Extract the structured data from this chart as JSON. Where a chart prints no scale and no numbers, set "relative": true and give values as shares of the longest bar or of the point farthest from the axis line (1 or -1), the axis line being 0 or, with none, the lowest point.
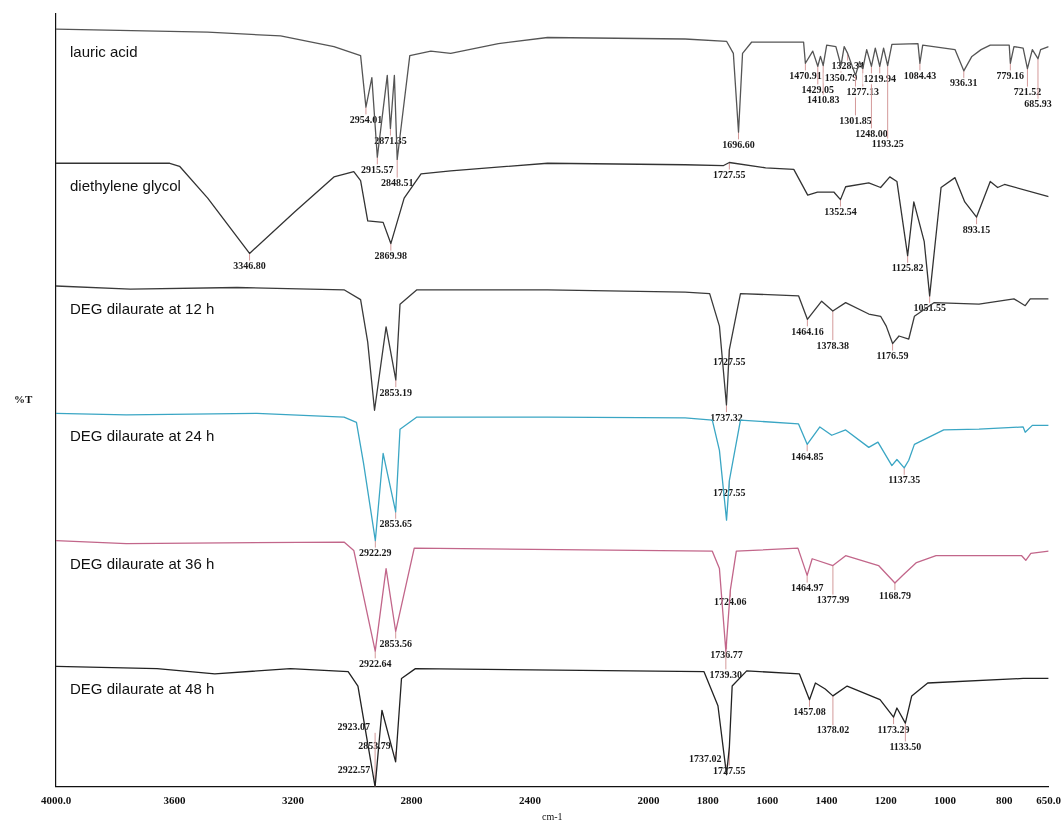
{
  "chart_data": {
    "type": "line",
    "relative": true,
    "xlabel": "cm-1",
    "ylabel": "%T",
    "xlim": [
      4000,
      650
    ],
    "xticks": [
      {
        "value": 4000,
        "label": "4000.0"
      },
      3600,
      3200,
      2800,
      2400,
      2000,
      1800,
      1600,
      1400,
      1200,
      1000,
      800,
      {
        "value": 650,
        "label": "650.0"
      }
    ],
    "series": [
      {
        "name": "lauric acid",
        "color": "#555555",
        "x": [
          4000,
          3488,
          3242,
          3062,
          2972,
          2954.01,
          2934,
          2915.57,
          2882,
          2871.35,
          2858,
          2848.51,
          2806,
          2735,
          2668,
          2507,
          2341,
          1877,
          1737,
          1714,
          1696.6,
          1683,
          1652,
          1477,
          1470.91,
          1446,
          1429.05,
          1420,
          1410.83,
          1399,
          1368,
          1350.79,
          1340,
          1328.34,
          1301.85,
          1288,
          1277.13,
          1264,
          1248,
          1235,
          1219.94,
          1207,
          1193.25,
          1179,
          1091,
          1084.43,
          1075,
          966,
          936.31,
          909,
          878,
          847,
          783,
          779.16,
          767,
          736,
          721.52,
          705,
          685.93,
          677,
          650
        ],
        "values": [
          1.0,
          0.996,
          0.991,
          0.977,
          0.965,
          0.897,
          0.936,
          0.831,
          0.939,
          0.869,
          0.939,
          0.828,
          0.965,
          0.971,
          0.968,
          0.981,
          0.989,
          0.987,
          0.984,
          0.968,
          0.864,
          0.968,
          0.983,
          0.983,
          0.955,
          0.971,
          0.951,
          0.964,
          0.952,
          0.979,
          0.977,
          0.952,
          0.977,
          0.968,
          0.939,
          0.957,
          0.948,
          0.973,
          0.951,
          0.975,
          0.951,
          0.975,
          0.952,
          0.98,
          0.981,
          0.955,
          0.979,
          0.973,
          0.945,
          0.964,
          0.973,
          0.979,
          0.979,
          0.955,
          0.977,
          0.975,
          0.948,
          0.973,
          0.961,
          0.973,
          0.977
        ]
      },
      {
        "name": "diethylene glycol",
        "color": "#333333",
        "x": [
          4000,
          3616,
          3583,
          3488,
          3346.8,
          3194,
          3062,
          2995,
          2972,
          2948,
          2896,
          2869.98,
          2825,
          2768,
          2668,
          2341,
          1877,
          1747,
          1727.55,
          1605,
          1510,
          1463,
          1430,
          1375,
          1352.54,
          1335,
          1257,
          1217,
          1186,
          1162,
          1125.82,
          1105,
          1070,
          1051.55,
          1013,
          966,
          933,
          893.15,
          847,
          822,
          799,
          650
        ],
        "values": [
          0.823,
          0.823,
          0.819,
          0.777,
          0.704,
          0.759,
          0.805,
          0.812,
          0.8,
          0.747,
          0.745,
          0.717,
          0.777,
          0.809,
          0.813,
          0.823,
          0.821,
          0.82,
          0.824,
          0.817,
          0.815,
          0.781,
          0.785,
          0.785,
          0.775,
          0.792,
          0.797,
          0.791,
          0.805,
          0.799,
          0.701,
          0.772,
          0.72,
          0.648,
          0.791,
          0.804,
          0.772,
          0.752,
          0.799,
          0.791,
          0.795,
          0.779
        ]
      },
      {
        "name": "DEG dilaurate at 12 h",
        "color": "#3a3a3a",
        "x": [
          4000,
          3749,
          3389,
          3028,
          2972,
          2948,
          2925,
          2886,
          2853.19,
          2839,
          2782,
          2341,
          1877,
          1794,
          1761,
          1737.32,
          1727.55,
          1690,
          1494,
          1464.16,
          1416,
          1378.38,
          1335,
          1257,
          1217,
          1198,
          1176.59,
          1155,
          1122,
          1103,
          1037,
          885,
          767,
          729,
          712,
          650
        ],
        "values": [
          0.661,
          0.657,
          0.659,
          0.656,
          0.643,
          0.587,
          0.497,
          0.607,
          0.537,
          0.637,
          0.656,
          0.656,
          0.653,
          0.651,
          0.608,
          0.504,
          0.577,
          0.651,
          0.648,
          0.617,
          0.641,
          0.628,
          0.639,
          0.624,
          0.621,
          0.608,
          0.585,
          0.595,
          0.591,
          0.621,
          0.639,
          0.637,
          0.644,
          0.635,
          0.644,
          0.644
        ]
      },
      {
        "name": "DEG dilaurate at 24 h",
        "color": "#3aa6c4",
        "x": [
          4000,
          3763,
          3322,
          3028,
          2986,
          2962,
          2922.29,
          2896,
          2853.65,
          2839,
          2782,
          2341,
          1877,
          1785,
          1761,
          1737,
          1727.55,
          1690,
          1494,
          1464.85,
          1422,
          1382,
          1335,
          1257,
          1226,
          1179,
          1162,
          1137.35,
          1122,
          1103,
          1004,
          885,
          736,
          729,
          705,
          650
        ],
        "values": [
          0.493,
          0.491,
          0.493,
          0.488,
          0.481,
          0.427,
          0.325,
          0.44,
          0.363,
          0.472,
          0.488,
          0.488,
          0.487,
          0.484,
          0.444,
          0.352,
          0.404,
          0.484,
          0.479,
          0.452,
          0.475,
          0.464,
          0.471,
          0.448,
          0.455,
          0.424,
          0.432,
          0.421,
          0.431,
          0.452,
          0.471,
          0.472,
          0.475,
          0.468,
          0.477,
          0.477
        ]
      },
      {
        "name": "DEG dilaurate at 36 h",
        "color": "#c2668a",
        "x": [
          4000,
          3763,
          3028,
          2995,
          2922.64,
          2886,
          2853.56,
          2791,
          1785,
          1761,
          1739.3,
          1724.06,
          1704,
          1496,
          1464.97,
          1448,
          1377.99,
          1335,
          1224,
          1168.79,
          1143,
          1096,
          1030,
          741,
          727,
          710,
          650
        ],
        "values": [
          0.325,
          0.321,
          0.323,
          0.312,
          0.179,
          0.288,
          0.205,
          0.315,
          0.311,
          0.288,
          0.179,
          0.26,
          0.311,
          0.315,
          0.279,
          0.301,
          0.292,
          0.305,
          0.292,
          0.269,
          0.279,
          0.296,
          0.305,
          0.305,
          0.299,
          0.308,
          0.311
        ]
      },
      {
        "name": "DEG dilaurate at 48 h",
        "color": "#222222",
        "x": [
          4000,
          3659,
          3464,
          3209,
          3014,
          2981,
          2923.07,
          2900,
          2853.79,
          2834,
          2787,
          1813,
          1766,
          1737.02,
          1727.55,
          1718,
          1669,
          1491,
          1457.08,
          1437,
          1404,
          1378.02,
          1330,
          1219,
          1173.29,
          1162,
          1133.5,
          1112,
          1058,
          736,
          650
        ],
        "values": [
          0.159,
          0.156,
          0.149,
          0.156,
          0.152,
          0.133,
          0.0,
          0.101,
          0.033,
          0.143,
          0.156,
          0.152,
          0.107,
          0.016,
          0.052,
          0.133,
          0.153,
          0.149,
          0.115,
          0.137,
          0.129,
          0.12,
          0.133,
          0.115,
          0.092,
          0.104,
          0.084,
          0.12,
          0.137,
          0.143,
          0.143
        ]
      }
    ],
    "annotations": [
      {
        "text": "2954.01",
        "x": 2954.01,
        "y": 0.897
      },
      {
        "text": "2915.57",
        "x": 2915.57,
        "y": 0.831
      },
      {
        "text": "2871.35",
        "x": 2871.35,
        "y": 0.869
      },
      {
        "text": "2848.51",
        "x": 2848.51,
        "y": 0.828
      },
      {
        "text": "1696.60",
        "x": 1696.6,
        "y": 0.864
      },
      {
        "text": "1470.91",
        "x": 1470.91,
        "y": 0.955
      },
      {
        "text": "1429.05",
        "x": 1429.05,
        "y": 0.951
      },
      {
        "text": "1410.83",
        "x": 1410.83,
        "y": 0.952
      },
      {
        "text": "1350.79",
        "x": 1350.79,
        "y": 0.952
      },
      {
        "text": "1328.34",
        "x": 1328.34,
        "y": 0.968
      },
      {
        "text": "1301.85",
        "x": 1301.85,
        "y": 0.939
      },
      {
        "text": "1277.13",
        "x": 1277.13,
        "y": 0.948
      },
      {
        "text": "1248.00",
        "x": 1248,
        "y": 0.951
      },
      {
        "text": "1219.94",
        "x": 1219.94,
        "y": 0.951
      },
      {
        "text": "1193.25",
        "x": 1193.25,
        "y": 0.952
      },
      {
        "text": "1084.43",
        "x": 1084.43,
        "y": 0.955
      },
      {
        "text": "936.31",
        "x": 936.31,
        "y": 0.945
      },
      {
        "text": "779.16",
        "x": 779.16,
        "y": 0.955
      },
      {
        "text": "721.52",
        "x": 721.52,
        "y": 0.948
      },
      {
        "text": "685.93",
        "x": 685.93,
        "y": 0.961
      },
      {
        "text": "3346.80",
        "x": 3346.8,
        "y": 0.704
      },
      {
        "text": "2869.98",
        "x": 2869.98,
        "y": 0.717
      },
      {
        "text": "1727.55",
        "x": 1727.55,
        "y": 0.824
      },
      {
        "text": "1352.54",
        "x": 1352.54,
        "y": 0.775
      },
      {
        "text": "1125.82",
        "x": 1125.82,
        "y": 0.701
      },
      {
        "text": "1051.55",
        "x": 1051.55,
        "y": 0.648
      },
      {
        "text": "893.15",
        "x": 893.15,
        "y": 0.752
      },
      {
        "text": "2853.19",
        "x": 2853.19,
        "y": 0.537
      },
      {
        "text": "1737.32",
        "x": 1737.32,
        "y": 0.504
      },
      {
        "text": "1727.55",
        "x": 1727.55,
        "y": 0.577
      },
      {
        "text": "1464.16",
        "x": 1464.16,
        "y": 0.617
      },
      {
        "text": "1378.38",
        "x": 1378.38,
        "y": 0.628
      },
      {
        "text": "1176.59",
        "x": 1176.59,
        "y": 0.585
      },
      {
        "text": "2922.29",
        "x": 2922.29,
        "y": 0.325
      },
      {
        "text": "2853.65",
        "x": 2853.65,
        "y": 0.363
      },
      {
        "text": "1727.55",
        "x": 1727.55,
        "y": 0.404
      },
      {
        "text": "1464.85",
        "x": 1464.85,
        "y": 0.452
      },
      {
        "text": "1137.35",
        "x": 1137.35,
        "y": 0.421
      },
      {
        "text": "2922.64",
        "x": 2922.64,
        "y": 0.179
      },
      {
        "text": "2853.56",
        "x": 2853.56,
        "y": 0.205
      },
      {
        "text": "1736.77",
        "x": 1736.77,
        "y": 0.191
      },
      {
        "text": "1739.30",
        "x": 1739.3,
        "y": 0.179
      },
      {
        "text": "1724.06",
        "x": 1724.06,
        "y": 0.26
      },
      {
        "text": "1464.97",
        "x": 1464.97,
        "y": 0.279
      },
      {
        "text": "1377.99",
        "x": 1377.99,
        "y": 0.292
      },
      {
        "text": "1168.79",
        "x": 1168.79,
        "y": 0.269
      },
      {
        "text": "2922.57",
        "x": 2922.57,
        "y": 0.002
      },
      {
        "text": "2853.79",
        "x": 2853.79,
        "y": 0.033
      },
      {
        "text": "2923.07",
        "x": 2923.07,
        "y": 0.0
      },
      {
        "text": "1737.02",
        "x": 1737.02,
        "y": 0.016
      },
      {
        "text": "1727.55",
        "x": 1727.55,
        "y": 0.052
      },
      {
        "text": "1457.08",
        "x": 1457.08,
        "y": 0.115
      },
      {
        "text": "1378.02",
        "x": 1378.02,
        "y": 0.12
      },
      {
        "text": "1173.29",
        "x": 1173.29,
        "y": 0.092
      },
      {
        "text": "1133.50",
        "x": 1133.5,
        "y": 0.084
      }
    ]
  }
}
